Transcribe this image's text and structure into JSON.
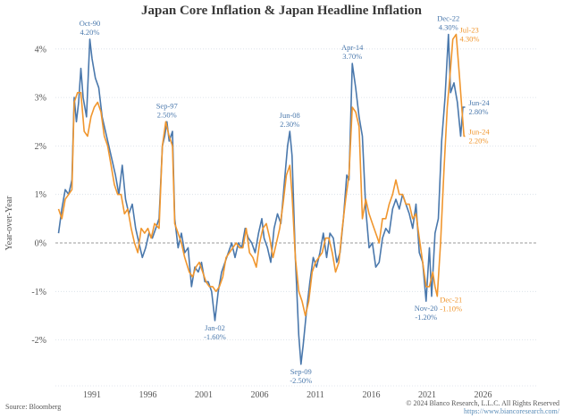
{
  "chart_data": {
    "type": "line",
    "title": "Japan Core Inflation & Japan Headline Inflation",
    "xlabel": "",
    "ylabel": "Year-over-Year",
    "xlim": [
      1988,
      2026
    ],
    "ylim": [
      -3,
      4.3
    ],
    "x_ticks": [
      "1991",
      "1996",
      "2001",
      "2006",
      "2011",
      "2016",
      "2021",
      "2026"
    ],
    "y_ticks": [
      "4%",
      "3%",
      "2%",
      "1%",
      "0%",
      "-1%",
      "-2%"
    ],
    "y_tick_values": [
      4,
      3,
      2,
      1,
      0,
      -1,
      -2
    ],
    "grid": true,
    "series": [
      {
        "name": "Japan Core Inflation",
        "color": "#4a78ac",
        "points": [
          [
            1988.0,
            0.2
          ],
          [
            1988.3,
            0.7
          ],
          [
            1988.6,
            1.1
          ],
          [
            1988.9,
            1.0
          ],
          [
            1989.2,
            1.3
          ],
          [
            1989.4,
            3.0
          ],
          [
            1989.6,
            2.5
          ],
          [
            1989.8,
            2.9
          ],
          [
            1990.0,
            3.6
          ],
          [
            1990.2,
            3.0
          ],
          [
            1990.5,
            2.6
          ],
          [
            1990.8,
            4.2
          ],
          [
            1991.0,
            3.8
          ],
          [
            1991.3,
            3.4
          ],
          [
            1991.6,
            3.2
          ],
          [
            1991.9,
            2.6
          ],
          [
            1992.2,
            2.3
          ],
          [
            1992.5,
            2.0
          ],
          [
            1992.8,
            1.7
          ],
          [
            1993.1,
            1.4
          ],
          [
            1993.4,
            1.0
          ],
          [
            1993.7,
            1.6
          ],
          [
            1994.0,
            0.9
          ],
          [
            1994.3,
            0.6
          ],
          [
            1994.6,
            0.8
          ],
          [
            1994.9,
            0.3
          ],
          [
            1995.2,
            0.0
          ],
          [
            1995.5,
            -0.3
          ],
          [
            1995.8,
            -0.1
          ],
          [
            1996.1,
            0.2
          ],
          [
            1996.4,
            0.1
          ],
          [
            1996.7,
            0.3
          ],
          [
            1997.0,
            0.5
          ],
          [
            1997.3,
            2.0
          ],
          [
            1997.5,
            2.2
          ],
          [
            1997.7,
            2.5
          ],
          [
            1997.9,
            2.1
          ],
          [
            1998.2,
            2.3
          ],
          [
            1998.4,
            0.5
          ],
          [
            1998.7,
            -0.1
          ],
          [
            1999.0,
            0.2
          ],
          [
            1999.3,
            -0.2
          ],
          [
            1999.6,
            -0.1
          ],
          [
            1999.9,
            -0.9
          ],
          [
            2000.2,
            -0.5
          ],
          [
            2000.5,
            -0.6
          ],
          [
            2000.8,
            -0.4
          ],
          [
            2001.1,
            -0.8
          ],
          [
            2001.4,
            -0.8
          ],
          [
            2001.7,
            -1.0
          ],
          [
            2002.0,
            -1.6
          ],
          [
            2002.3,
            -1.0
          ],
          [
            2002.6,
            -0.6
          ],
          [
            2002.9,
            -0.4
          ],
          [
            2003.2,
            -0.2
          ],
          [
            2003.5,
            0.0
          ],
          [
            2003.8,
            -0.3
          ],
          [
            2004.1,
            0.0
          ],
          [
            2004.4,
            -0.1
          ],
          [
            2004.7,
            0.3
          ],
          [
            2005.0,
            0.1
          ],
          [
            2005.3,
            0.0
          ],
          [
            2005.6,
            -0.2
          ],
          [
            2005.9,
            0.2
          ],
          [
            2006.2,
            0.5
          ],
          [
            2006.4,
            0.1
          ],
          [
            2006.7,
            -0.1
          ],
          [
            2007.0,
            -0.4
          ],
          [
            2007.3,
            0.3
          ],
          [
            2007.6,
            0.6
          ],
          [
            2007.9,
            0.4
          ],
          [
            2008.2,
            1.2
          ],
          [
            2008.5,
            2.0
          ],
          [
            2008.7,
            2.3
          ],
          [
            2008.9,
            1.8
          ],
          [
            2009.2,
            -0.3
          ],
          [
            2009.5,
            -1.9
          ],
          [
            2009.7,
            -2.5
          ],
          [
            2009.9,
            -2.1
          ],
          [
            2010.2,
            -1.4
          ],
          [
            2010.5,
            -0.8
          ],
          [
            2010.8,
            -0.3
          ],
          [
            2011.1,
            -0.5
          ],
          [
            2011.4,
            -0.2
          ],
          [
            2011.7,
            0.2
          ],
          [
            2012.0,
            -0.3
          ],
          [
            2012.3,
            0.2
          ],
          [
            2012.6,
            0.1
          ],
          [
            2012.9,
            -0.4
          ],
          [
            2013.2,
            -0.2
          ],
          [
            2013.5,
            0.5
          ],
          [
            2013.8,
            1.4
          ],
          [
            2014.0,
            1.3
          ],
          [
            2014.3,
            3.7
          ],
          [
            2014.6,
            3.2
          ],
          [
            2014.9,
            2.6
          ],
          [
            2015.2,
            2.2
          ],
          [
            2015.5,
            0.7
          ],
          [
            2015.8,
            -0.1
          ],
          [
            2016.1,
            0.0
          ],
          [
            2016.4,
            -0.5
          ],
          [
            2016.7,
            -0.4
          ],
          [
            2017.0,
            0.1
          ],
          [
            2017.3,
            0.3
          ],
          [
            2017.6,
            0.2
          ],
          [
            2017.9,
            0.7
          ],
          [
            2018.2,
            0.9
          ],
          [
            2018.5,
            0.7
          ],
          [
            2018.8,
            1.0
          ],
          [
            2019.1,
            0.8
          ],
          [
            2019.4,
            0.6
          ],
          [
            2019.7,
            0.3
          ],
          [
            2020.0,
            0.8
          ],
          [
            2020.3,
            -0.2
          ],
          [
            2020.6,
            -0.4
          ],
          [
            2020.9,
            -1.2
          ],
          [
            2021.2,
            -0.1
          ],
          [
            2021.4,
            -1.1
          ],
          [
            2021.7,
            0.2
          ],
          [
            2022.0,
            0.5
          ],
          [
            2022.3,
            2.1
          ],
          [
            2022.6,
            3.0
          ],
          [
            2022.9,
            4.3
          ],
          [
            2023.1,
            3.1
          ],
          [
            2023.4,
            3.3
          ],
          [
            2023.7,
            2.9
          ],
          [
            2024.0,
            2.2
          ],
          [
            2024.2,
            2.8
          ],
          [
            2024.4,
            2.8
          ]
        ]
      },
      {
        "name": "Japan Headline Inflation",
        "color": "#f0962e",
        "points": [
          [
            1988.0,
            0.7
          ],
          [
            1988.3,
            0.5
          ],
          [
            1988.6,
            0.9
          ],
          [
            1988.9,
            1.0
          ],
          [
            1989.2,
            1.1
          ],
          [
            1989.4,
            2.9
          ],
          [
            1989.7,
            3.1
          ],
          [
            1990.0,
            3.1
          ],
          [
            1990.3,
            2.3
          ],
          [
            1990.6,
            2.2
          ],
          [
            1990.9,
            2.6
          ],
          [
            1991.2,
            2.8
          ],
          [
            1991.5,
            2.9
          ],
          [
            1991.8,
            2.7
          ],
          [
            1992.1,
            2.2
          ],
          [
            1992.4,
            2.0
          ],
          [
            1992.7,
            1.6
          ],
          [
            1993.0,
            1.2
          ],
          [
            1993.3,
            1.0
          ],
          [
            1993.6,
            1.0
          ],
          [
            1993.9,
            0.6
          ],
          [
            1994.2,
            0.7
          ],
          [
            1994.5,
            0.3
          ],
          [
            1994.8,
            0.0
          ],
          [
            1995.1,
            -0.2
          ],
          [
            1995.4,
            0.3
          ],
          [
            1995.7,
            0.2
          ],
          [
            1996.0,
            0.3
          ],
          [
            1996.3,
            0.1
          ],
          [
            1996.6,
            0.4
          ],
          [
            1997.0,
            0.3
          ],
          [
            1997.3,
            2.0
          ],
          [
            1997.6,
            2.5
          ],
          [
            1997.9,
            2.2
          ],
          [
            1998.2,
            2.0
          ],
          [
            1998.4,
            0.4
          ],
          [
            1998.7,
            0.2
          ],
          [
            1999.0,
            0.0
          ],
          [
            1999.3,
            -0.3
          ],
          [
            1999.7,
            -0.6
          ],
          [
            2000.0,
            -0.7
          ],
          [
            2000.3,
            -0.5
          ],
          [
            2000.6,
            -0.4
          ],
          [
            2000.9,
            -0.6
          ],
          [
            2001.2,
            -0.8
          ],
          [
            2001.5,
            -0.9
          ],
          [
            2001.8,
            -0.9
          ],
          [
            2002.1,
            -1.0
          ],
          [
            2002.4,
            -0.9
          ],
          [
            2002.7,
            -0.7
          ],
          [
            2003.0,
            -0.3
          ],
          [
            2003.3,
            -0.2
          ],
          [
            2003.6,
            -0.1
          ],
          [
            2003.9,
            0.0
          ],
          [
            2004.2,
            -0.1
          ],
          [
            2004.5,
            -0.1
          ],
          [
            2004.8,
            0.3
          ],
          [
            2005.1,
            -0.2
          ],
          [
            2005.4,
            -0.3
          ],
          [
            2005.7,
            -0.5
          ],
          [
            2006.0,
            0.0
          ],
          [
            2006.3,
            0.3
          ],
          [
            2006.6,
            0.4
          ],
          [
            2006.9,
            0.1
          ],
          [
            2007.2,
            -0.3
          ],
          [
            2007.5,
            0.0
          ],
          [
            2007.8,
            0.3
          ],
          [
            2008.1,
            0.8
          ],
          [
            2008.4,
            1.4
          ],
          [
            2008.7,
            1.6
          ],
          [
            2008.9,
            1.0
          ],
          [
            2009.2,
            -0.3
          ],
          [
            2009.5,
            -1.0
          ],
          [
            2009.8,
            -1.2
          ],
          [
            2010.1,
            -1.5
          ],
          [
            2010.4,
            -1.2
          ],
          [
            2010.7,
            -0.6
          ],
          [
            2011.0,
            -0.4
          ],
          [
            2011.3,
            -0.3
          ],
          [
            2011.6,
            -0.2
          ],
          [
            2011.9,
            0.1
          ],
          [
            2012.2,
            0.1
          ],
          [
            2012.5,
            -0.2
          ],
          [
            2012.8,
            -0.6
          ],
          [
            2013.1,
            -0.4
          ],
          [
            2013.4,
            0.3
          ],
          [
            2013.7,
            0.9
          ],
          [
            2014.0,
            1.4
          ],
          [
            2014.3,
            2.8
          ],
          [
            2014.6,
            2.7
          ],
          [
            2014.9,
            2.4
          ],
          [
            2015.2,
            0.5
          ],
          [
            2015.5,
            0.9
          ],
          [
            2015.8,
            0.6
          ],
          [
            2016.1,
            0.4
          ],
          [
            2016.4,
            0.2
          ],
          [
            2016.7,
            0.0
          ],
          [
            2017.0,
            0.5
          ],
          [
            2017.3,
            0.5
          ],
          [
            2017.6,
            0.8
          ],
          [
            2017.9,
            1.0
          ],
          [
            2018.2,
            1.3
          ],
          [
            2018.5,
            1.0
          ],
          [
            2018.8,
            1.0
          ],
          [
            2019.1,
            0.8
          ],
          [
            2019.4,
            0.8
          ],
          [
            2019.7,
            0.5
          ],
          [
            2020.0,
            0.6
          ],
          [
            2020.3,
            0.1
          ],
          [
            2020.6,
            -0.4
          ],
          [
            2020.9,
            -0.9
          ],
          [
            2021.2,
            -0.9
          ],
          [
            2021.5,
            -0.6
          ],
          [
            2021.7,
            -0.9
          ],
          [
            2021.9,
            -1.1
          ],
          [
            2022.2,
            0.0
          ],
          [
            2022.5,
            1.5
          ],
          [
            2022.8,
            2.8
          ],
          [
            2023.1,
            3.6
          ],
          [
            2023.3,
            4.2
          ],
          [
            2023.6,
            4.3
          ],
          [
            2023.9,
            3.4
          ],
          [
            2024.1,
            2.8
          ],
          [
            2024.3,
            2.2
          ],
          [
            2024.4,
            2.2
          ]
        ]
      }
    ],
    "annotations": [
      {
        "series": "Japan Core Inflation",
        "x": 1990.8,
        "y": 4.2,
        "label": "Oct-90",
        "value": "4.20%",
        "pos": "above"
      },
      {
        "series": "Japan Core Inflation",
        "x": 1997.7,
        "y": 2.5,
        "label": "Sep-97",
        "value": "2.50%",
        "pos": "above"
      },
      {
        "series": "Japan Core Inflation",
        "x": 2002.0,
        "y": -1.6,
        "label": "Jan-02",
        "value": "-1.60%",
        "pos": "below"
      },
      {
        "series": "Japan Core Inflation",
        "x": 2008.7,
        "y": 2.3,
        "label": "Jun-08",
        "value": "2.30%",
        "pos": "above"
      },
      {
        "series": "Japan Core Inflation",
        "x": 2009.7,
        "y": -2.5,
        "label": "Sep-09",
        "value": "-2.50%",
        "pos": "below"
      },
      {
        "series": "Japan Core Inflation",
        "x": 2014.3,
        "y": 3.7,
        "label": "Apr-14",
        "value": "3.70%",
        "pos": "above"
      },
      {
        "series": "Japan Core Inflation",
        "x": 2020.9,
        "y": -1.2,
        "label": "Nov-20",
        "value": "-1.20%",
        "pos": "below"
      },
      {
        "series": "Japan Core Inflation",
        "x": 2022.9,
        "y": 4.3,
        "label": "Dec-22",
        "value": "4.30%",
        "pos": "above"
      },
      {
        "series": "Japan Core Inflation",
        "x": 2024.4,
        "y": 2.8,
        "label": "Jun-24",
        "value": "2.80%",
        "pos": "right"
      },
      {
        "series": "Japan Headline Inflation",
        "x": 2021.9,
        "y": -1.1,
        "label": "Dec-21",
        "value": "-1.10%",
        "pos": "right-below"
      },
      {
        "series": "Japan Headline Inflation",
        "x": 2023.6,
        "y": 4.3,
        "label": "Jul-23",
        "value": "4.30%",
        "pos": "right"
      },
      {
        "series": "Japan Headline Inflation",
        "x": 2024.4,
        "y": 2.2,
        "label": "Jun-24",
        "value": "2.20%",
        "pos": "right"
      }
    ]
  },
  "footer": {
    "source": "Source: Bloomberg",
    "copyright": "© 2024 Blanco Research, L.L.C. All Rights Reserved",
    "url": "https://www.biancoresearch.com/"
  }
}
